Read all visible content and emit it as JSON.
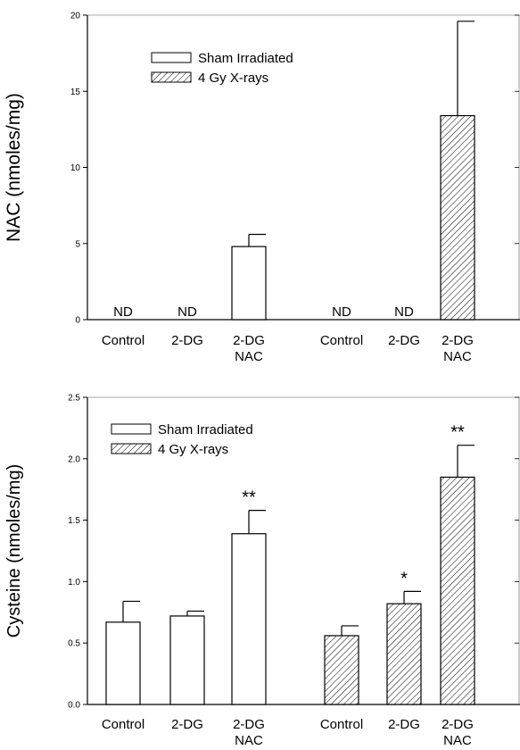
{
  "chart_data": [
    {
      "type": "bar",
      "ylabel": "NAC (nmoles/mg)",
      "ylim": [
        0,
        20
      ],
      "yticks": [
        0,
        5,
        10,
        15,
        20
      ],
      "grid": false,
      "legend_position": "top-left",
      "legend": [
        {
          "label": "Sham Irradiated",
          "pattern": "open"
        },
        {
          "label": "4 Gy X-rays",
          "pattern": "hatched"
        }
      ],
      "groups": [
        {
          "name": "Sham Irradiated",
          "pattern": "open",
          "categories": [
            "Control",
            "2-DG",
            "2-DG\nNAC"
          ],
          "values": [
            0,
            0,
            4.8
          ],
          "errors": [
            null,
            null,
            0.8
          ],
          "annotations": [
            "ND",
            "ND",
            ""
          ]
        },
        {
          "name": "4 Gy X-rays",
          "pattern": "hatched",
          "categories": [
            "Control",
            "2-DG",
            "2-DG\nNAC"
          ],
          "values": [
            0,
            0,
            13.4
          ],
          "errors": [
            null,
            null,
            6.2
          ],
          "annotations": [
            "ND",
            "ND",
            ""
          ]
        }
      ]
    },
    {
      "type": "bar",
      "ylabel": "Cysteine (nmoles/mg)",
      "ylim": [
        0,
        2.5
      ],
      "yticks": [
        0.0,
        0.5,
        1.0,
        1.5,
        2.0,
        2.5
      ],
      "grid": false,
      "legend_position": "top-left",
      "legend": [
        {
          "label": "Sham Irradiated",
          "pattern": "open"
        },
        {
          "label": "4 Gy X-rays",
          "pattern": "hatched"
        }
      ],
      "groups": [
        {
          "name": "Sham Irradiated",
          "pattern": "open",
          "categories": [
            "Control",
            "2-DG",
            "2-DG\nNAC"
          ],
          "values": [
            0.67,
            0.72,
            1.39
          ],
          "errors": [
            0.17,
            0.04,
            0.19
          ],
          "annotations": [
            "",
            "",
            "**"
          ]
        },
        {
          "name": "4 Gy X-rays",
          "pattern": "hatched",
          "categories": [
            "Control",
            "2-DG",
            "2-DG\nNAC"
          ],
          "values": [
            0.56,
            0.82,
            1.85
          ],
          "errors": [
            0.08,
            0.1,
            0.26
          ],
          "annotations": [
            "",
            "*",
            "**"
          ]
        }
      ]
    }
  ]
}
